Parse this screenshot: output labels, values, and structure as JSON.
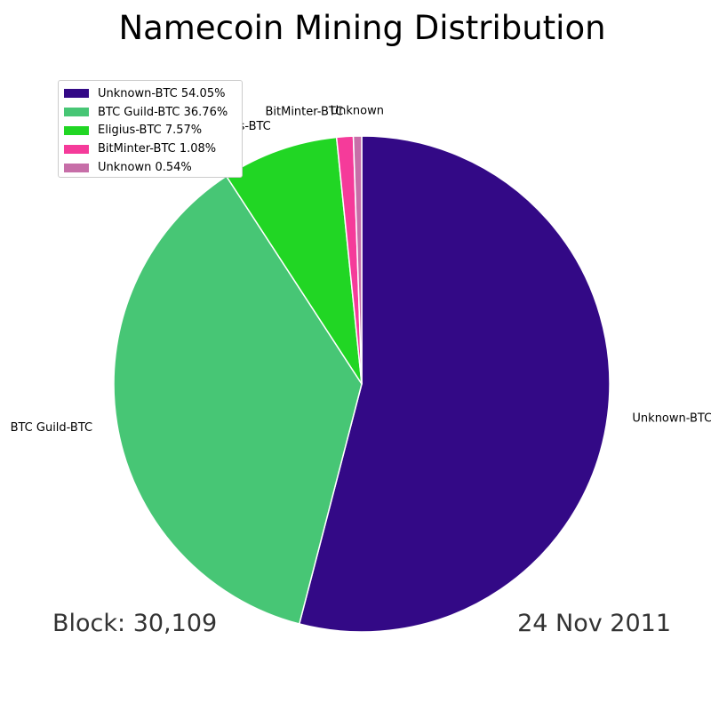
{
  "chart_data": {
    "type": "pie",
    "title": "Namecoin Mining Distribution",
    "categories": [
      "Unknown-BTC",
      "BTC Guild-BTC",
      "Eligius-BTC",
      "BitMinter-BTC",
      "Unknown"
    ],
    "values": [
      54.05,
      36.76,
      7.57,
      1.08,
      0.54
    ],
    "legend_labels": [
      "Unknown-BTC 54.05%",
      "BTC Guild-BTC 36.76%",
      "Eligius-BTC 7.57%",
      "BitMinter-BTC 1.08%",
      "Unknown 0.54%"
    ],
    "colors": [
      "#330986",
      "#47c675",
      "#21d624",
      "#f53b9a",
      "#c76ea8"
    ],
    "legend_position": "upper-left",
    "start_angle_deg": 90,
    "direction": "clockwise",
    "footer_left": "Block: 30,109",
    "footer_right": "24 Nov 2011"
  }
}
